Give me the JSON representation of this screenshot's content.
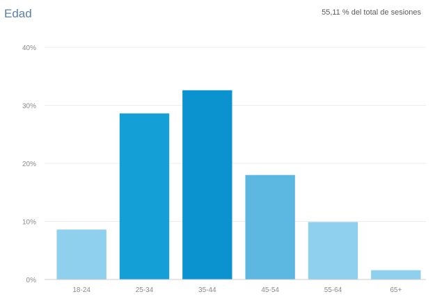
{
  "header": {
    "title": "Edad",
    "subtitle": "55,11 % del total de sesiones"
  },
  "colors": {
    "light": "#8fd0ee",
    "medium": "#5cb8e1",
    "dark": "#149fd6",
    "darkest": "#0b93cf",
    "grid": "#ececec",
    "axis": "#cccccc"
  },
  "chart_data": {
    "type": "bar",
    "categories": [
      "18-24",
      "25-34",
      "35-44",
      "45-54",
      "55-64",
      "65+"
    ],
    "values": [
      8.6,
      28.6,
      32.6,
      18.0,
      9.9,
      1.6
    ],
    "bar_colors": [
      "light",
      "dark",
      "darkest",
      "medium",
      "light",
      "light"
    ],
    "y_ticks": [
      0,
      10,
      20,
      30,
      40
    ],
    "y_tick_labels": [
      "0%",
      "10%",
      "20%",
      "30%",
      "40%"
    ],
    "ylim": [
      0,
      40
    ],
    "grid": true
  }
}
